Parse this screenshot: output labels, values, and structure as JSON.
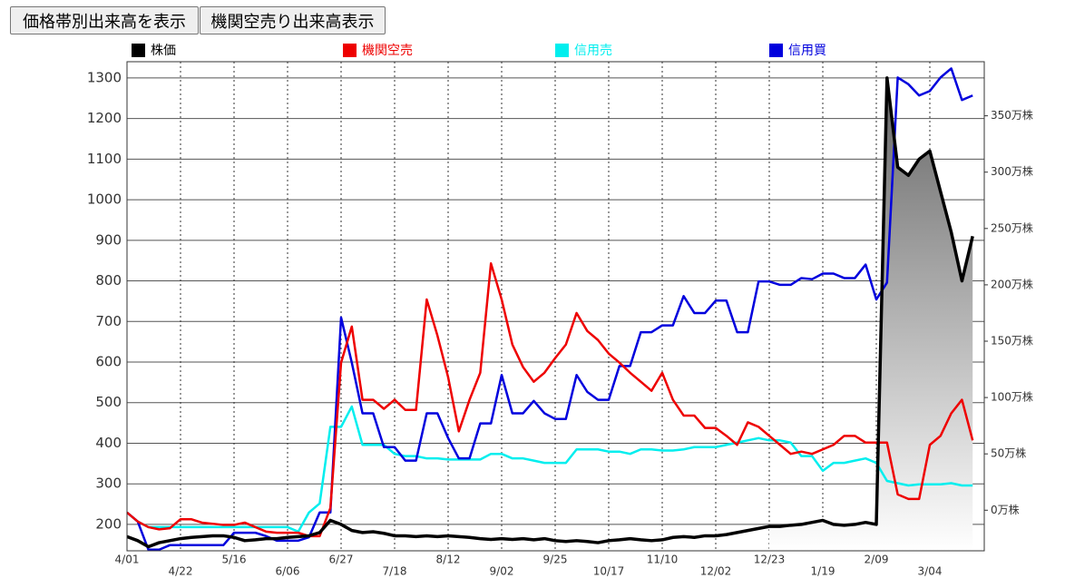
{
  "buttons": [
    "価格帯別出来高を表示",
    "機関空売り出来高表示"
  ],
  "chart_data": {
    "type": "line",
    "categories": [
      "4/01",
      null,
      null,
      null,
      null,
      "4/22",
      null,
      null,
      null,
      null,
      "5/16",
      null,
      null,
      null,
      null,
      "6/06",
      null,
      null,
      null,
      null,
      "6/27",
      null,
      null,
      null,
      null,
      "7/18",
      null,
      null,
      null,
      null,
      "8/12",
      null,
      null,
      null,
      null,
      "9/02",
      null,
      null,
      null,
      null,
      "9/25",
      null,
      null,
      null,
      null,
      "10/17",
      null,
      null,
      null,
      null,
      "11/10",
      null,
      null,
      null,
      null,
      "12/02",
      null,
      null,
      null,
      null,
      "12/23",
      null,
      null,
      null,
      null,
      "1/19",
      null,
      null,
      null,
      null,
      "2/09",
      null,
      null,
      null,
      null,
      "3/04",
      null,
      null,
      null,
      null
    ],
    "series": [
      {
        "name": "株価",
        "color": "#000000",
        "axis": "y",
        "values": [
          170,
          160,
          145,
          155,
          160,
          165,
          168,
          170,
          172,
          172,
          168,
          160,
          162,
          165,
          165,
          168,
          170,
          172,
          180,
          210,
          200,
          185,
          180,
          182,
          178,
          172,
          172,
          170,
          172,
          170,
          172,
          170,
          168,
          165,
          163,
          165,
          163,
          165,
          162,
          165,
          160,
          158,
          160,
          158,
          155,
          160,
          162,
          165,
          162,
          160,
          162,
          168,
          170,
          168,
          172,
          172,
          175,
          180,
          185,
          190,
          195,
          195,
          198,
          200,
          205,
          210,
          200,
          198,
          200,
          205,
          200,
          1300,
          1080,
          1060,
          1100,
          1120,
          1020,
          920,
          800,
          910
        ]
      },
      {
        "name": "機関空売",
        "color": "#ee0000",
        "axis": "y2",
        "values": [
          -2,
          -10,
          -15,
          -17,
          -16,
          -8,
          -8,
          -11,
          -12,
          -13,
          -13,
          -11,
          -15,
          -19,
          -20,
          -20,
          -20,
          -23,
          -23,
          2,
          131,
          163,
          98,
          98,
          90,
          98,
          89,
          89,
          187,
          155,
          118,
          70,
          98,
          122,
          219,
          187,
          147,
          127,
          114,
          122,
          135,
          147,
          175,
          159,
          151,
          139,
          131,
          122,
          114,
          106,
          122,
          98,
          84,
          84,
          73,
          73,
          66,
          58,
          78,
          74,
          66,
          58,
          50,
          52,
          50,
          54,
          58,
          66,
          66,
          60,
          60,
          60,
          14,
          10,
          10,
          58,
          66,
          86,
          98,
          62
        ]
      },
      {
        "name": "信用売",
        "color": "#00eeee",
        "axis": "y2",
        "values": [
          -2,
          -10,
          -15,
          -15,
          -15,
          -15,
          -15,
          -15,
          -15,
          -15,
          -15,
          -15,
          -15,
          -15,
          -15,
          -15,
          -19,
          -2,
          6,
          74,
          74,
          92,
          58,
          58,
          58,
          50,
          48,
          48,
          46,
          46,
          45,
          45,
          45,
          45,
          50,
          50,
          46,
          46,
          44,
          42,
          42,
          42,
          54,
          54,
          54,
          52,
          52,
          50,
          54,
          54,
          53,
          53,
          54,
          56,
          56,
          56,
          58,
          60,
          62,
          64,
          62,
          62,
          60,
          48,
          48,
          35,
          42,
          42,
          44,
          46,
          42,
          26,
          24,
          22,
          23,
          23,
          23,
          24,
          22,
          22
        ]
      },
      {
        "name": "信用買",
        "color": "#0000dd",
        "axis": "y2",
        "values": [
          -2,
          -10,
          -35,
          -35,
          -31,
          -31,
          -31,
          -31,
          -31,
          -31,
          -20,
          -20,
          -20,
          -23,
          -27,
          -27,
          -27,
          -24,
          -2,
          -2,
          171,
          131,
          86,
          86,
          56,
          56,
          44,
          44,
          86,
          86,
          64,
          46,
          46,
          77,
          77,
          120,
          86,
          86,
          97,
          86,
          81,
          81,
          120,
          105,
          98,
          98,
          128,
          128,
          158,
          158,
          164,
          164,
          190,
          175,
          175,
          186,
          186,
          158,
          158,
          203,
          203,
          200,
          200,
          206,
          205,
          210,
          210,
          206,
          206,
          218,
          187,
          202,
          384,
          378,
          368,
          372,
          384,
          392,
          364,
          368
        ]
      }
    ],
    "ylim": [
      135,
      1340
    ],
    "yticks": [
      200,
      300,
      400,
      500,
      600,
      700,
      800,
      900,
      1000,
      1100,
      1200,
      1300
    ],
    "y2lim": [
      -36,
      398
    ],
    "y2ticks": [
      {
        "value": 0,
        "label": "0万株"
      },
      {
        "value": 50,
        "label": "50万株"
      },
      {
        "value": 100,
        "label": "100万株"
      },
      {
        "value": 150,
        "label": "150万株"
      },
      {
        "value": 200,
        "label": "200万株"
      },
      {
        "value": 250,
        "label": "250万株"
      },
      {
        "value": 300,
        "label": "300万株"
      },
      {
        "value": 350,
        "label": "350万株"
      }
    ],
    "grid": true
  }
}
